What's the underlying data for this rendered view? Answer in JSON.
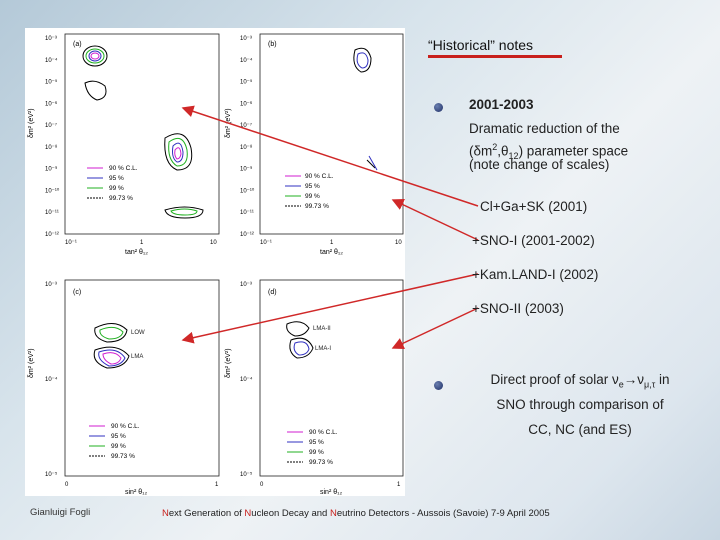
{
  "slide": {
    "title": "“Historical” notes",
    "bullet1_heading": "2001-2003",
    "bullet1_line1": "Dramatic reduction of the",
    "bullet1_line2_a": "(δm",
    "bullet1_line2_b": "2",
    "bullet1_line2_c": ",θ",
    "bullet1_line2_d": "12",
    "bullet1_line2_e": ")   parameter   space",
    "bullet1_line3": "(note change of scales)",
    "steps": [
      "Cl+Ga+SK (2001)",
      "+SNO-I (2001-2002)",
      "+Kam.LAND-I (2002)",
      "+SNO-II (2003)"
    ],
    "bullet2_a": "Direct proof of solar ν",
    "bullet2_e": "e",
    "bullet2_arrow": "→ν",
    "bullet2_mt": "μ,τ",
    "bullet2_in": " in",
    "bullet2_line2": "SNO through comparison of",
    "bullet2_line3": "CC, NC (and ES)",
    "footer_author": "Gianluigi Fogli",
    "footer_conf_pre": "",
    "footer_N1": "N",
    "footer_conf_1": "ext Generation of ",
    "footer_N2": "N",
    "footer_conf_2": "ucleon Decay and ",
    "footer_N3": "N",
    "footer_conf_3": "eutrino Detectors - Aussois (Savoie) 7-9 April 2005"
  },
  "figure": {
    "panels": [
      "(a)",
      "(b)",
      "(c)",
      "(d)"
    ],
    "legend": [
      "90 % C.L.",
      "95 %",
      "99 %",
      "99.73 %"
    ],
    "legend_colors": [
      "#d01cd0",
      "#3030c0",
      "#20b020",
      "#000000"
    ],
    "top_yticks": [
      "10⁻³",
      "10⁻⁴",
      "10⁻⁵",
      "10⁻⁶",
      "10⁻⁷",
      "10⁻⁸",
      "10⁻⁹",
      "10⁻¹⁰",
      "10⁻¹¹",
      "10⁻¹²"
    ],
    "top_xticks": [
      "10⁻¹",
      "1",
      "10",
      "10⁻¹",
      "1",
      "10"
    ],
    "bottom_yticks": [
      "10⁻³",
      "10⁻⁴",
      "10⁻⁵"
    ],
    "bottom_xticks": [
      "0",
      "1",
      "0",
      "1"
    ],
    "ylabel": "δm² (eV²)",
    "xlabel_top": "tan² θ₁₂",
    "xlabel_bottom": "sin² θ₁₂",
    "region_labels": [
      "LMA",
      "LOW",
      "LMA-I",
      "LMA-II"
    ]
  },
  "colors": {
    "accent_red": "#c8201c",
    "arrow": "#d02828"
  }
}
